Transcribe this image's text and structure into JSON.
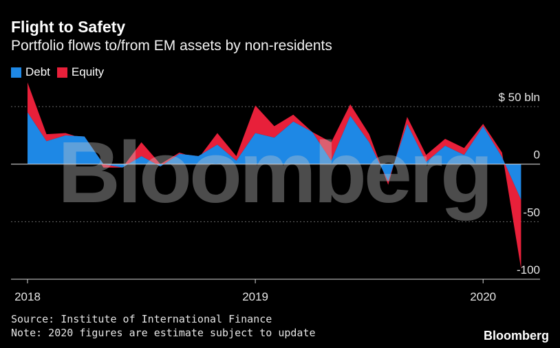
{
  "header": {
    "title": "Flight to Safety",
    "subtitle": "Portfolio flows to/from EM assets by non-residents"
  },
  "legend": [
    {
      "label": "Debt",
      "color": "#1e88e5"
    },
    {
      "label": "Equity",
      "color": "#e8203a"
    }
  ],
  "footer": {
    "source": "Source: Institute of International Finance",
    "note": "Note: 2020 figures are estimate subject to update",
    "brand": "Bloomberg"
  },
  "watermark": "Bloomberg",
  "chart_data": {
    "type": "area",
    "title": "Flight to Safety",
    "subtitle": "Portfolio flows to/from EM assets by non-residents",
    "xlabel": "",
    "ylabel": "$ bln",
    "ylim": [
      -100,
      50
    ],
    "xlim": [
      2018.0,
      2020.25
    ],
    "grid": true,
    "y_ticks": [
      {
        "value": 50,
        "label": "$ 50 bln"
      },
      {
        "value": 0,
        "label": "0"
      },
      {
        "value": -50,
        "label": "-50"
      },
      {
        "value": -100,
        "label": "-100"
      }
    ],
    "x_ticks": [
      {
        "value": 2018,
        "label": "2018"
      },
      {
        "value": 2019,
        "label": "2019"
      },
      {
        "value": 2020,
        "label": "2020"
      }
    ],
    "x": [
      2018.0,
      2018.0833,
      2018.1667,
      2018.25,
      2018.3333,
      2018.4167,
      2018.5,
      2018.5833,
      2018.6667,
      2018.75,
      2018.8333,
      2018.9167,
      2019.0,
      2019.0833,
      2019.1667,
      2019.25,
      2019.3333,
      2019.4167,
      2019.5,
      2019.5833,
      2019.6667,
      2019.75,
      2019.8333,
      2019.9167,
      2020.0,
      2020.0833,
      2020.1667
    ],
    "series": [
      {
        "name": "Debt",
        "color": "#1e88e5",
        "values": [
          45,
          20,
          25,
          24,
          0,
          -3,
          7,
          -2,
          9,
          7,
          17,
          3,
          27,
          23,
          37,
          28,
          3,
          42,
          19,
          -15,
          35,
          2,
          16,
          8,
          33,
          6,
          -31
        ]
      },
      {
        "name": "Equity",
        "color": "#e8203a",
        "values": [
          26,
          6,
          2,
          -2,
          -3,
          0,
          12,
          2,
          1,
          -2,
          10,
          4,
          24,
          10,
          6,
          0,
          16,
          10,
          7,
          -3,
          6,
          6,
          6,
          6,
          2,
          4,
          -60
        ]
      }
    ]
  }
}
